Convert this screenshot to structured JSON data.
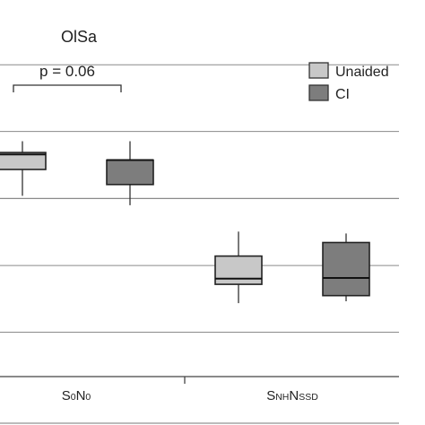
{
  "chart_data": {
    "type": "box",
    "title": "OlSa",
    "categories": [
      {
        "main": "S",
        "sub1": "0",
        "main2": "N",
        "sub2": "0"
      },
      {
        "main": "S",
        "sub1": "NH",
        "main2": "N",
        "sub2": "SSD"
      }
    ],
    "ylim": [
      0,
      1
    ],
    "grid": true,
    "gridlines": [
      0.118,
      0.295,
      0.473,
      0.651,
      0.828
    ],
    "legend_position": "top-right",
    "series": [
      {
        "name": "Unaided",
        "color": "#c8c8c8",
        "boxes": [
          {
            "min": 0.48,
            "q1": 0.55,
            "median": 0.59,
            "q3": 0.595,
            "max": 0.625
          },
          {
            "min": 0.195,
            "q1": 0.245,
            "median": 0.26,
            "q3": 0.32,
            "max": 0.385
          }
        ]
      },
      {
        "name": "CI",
        "color": "#7d7d7d",
        "boxes": [
          {
            "min": 0.455,
            "q1": 0.51,
            "median": 0.575,
            "q3": 0.575,
            "max": 0.625
          },
          {
            "min": 0.2,
            "q1": 0.215,
            "median": 0.262,
            "q3": 0.356,
            "max": 0.38
          }
        ]
      }
    ],
    "annotations": [
      {
        "text": "p = 0.06",
        "from_category": 0,
        "from_series": 0,
        "to_category": 0,
        "to_series": 1
      }
    ]
  }
}
